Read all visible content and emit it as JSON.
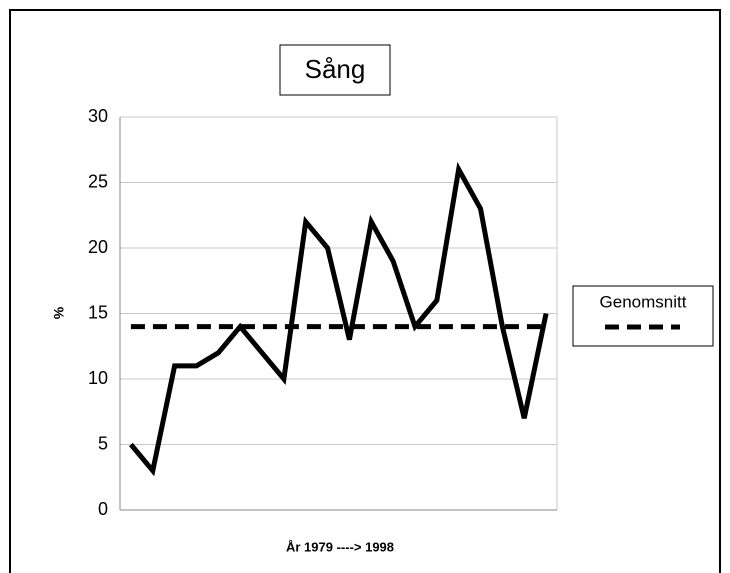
{
  "chart_data": {
    "type": "line",
    "title": "Sång",
    "xlabel": "År 1979 ----> 1998",
    "ylabel": "%",
    "categories": [
      null,
      null,
      null,
      null,
      null,
      null,
      null,
      null,
      null,
      null,
      null,
      null,
      null,
      null,
      null,
      null,
      null,
      null,
      null,
      null
    ],
    "series": [
      {
        "color": "#000000",
        "values": [
          5,
          3,
          11,
          11,
          12,
          14,
          12,
          10,
          22,
          20,
          13,
          22,
          19,
          14,
          16,
          26,
          23,
          14,
          7,
          15
        ]
      },
      {
        "name": "Genomsnitt",
        "color": "#000000",
        "dashed": true,
        "values": [
          14,
          14,
          14,
          14,
          14,
          14,
          14,
          14,
          14,
          14,
          14,
          14,
          14,
          14,
          14,
          14,
          14,
          14,
          14,
          14
        ]
      }
    ],
    "ylim": [
      0,
      30
    ],
    "yticks": [
      0,
      5,
      10,
      15,
      20,
      25,
      30
    ],
    "grid": true,
    "legend": "right"
  }
}
